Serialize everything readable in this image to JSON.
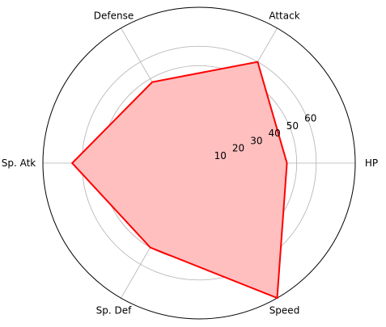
{
  "chart_data": {
    "type": "radar",
    "categories": [
      "HP",
      "Attack",
      "Defense",
      "Sp. Atk",
      "Sp. Def",
      "Speed"
    ],
    "values": [
      45,
      60,
      48,
      65,
      50,
      80
    ],
    "radial_ticks": [
      "10",
      "20",
      "30",
      "40",
      "50",
      "60"
    ],
    "radial_tick_values": [
      10,
      20,
      30,
      40,
      50,
      60
    ],
    "rmax": 80,
    "grid": true,
    "line_color": "#ff0000",
    "fill_color": "#ffbfbf",
    "grid_color": "#b0b0b0"
  }
}
